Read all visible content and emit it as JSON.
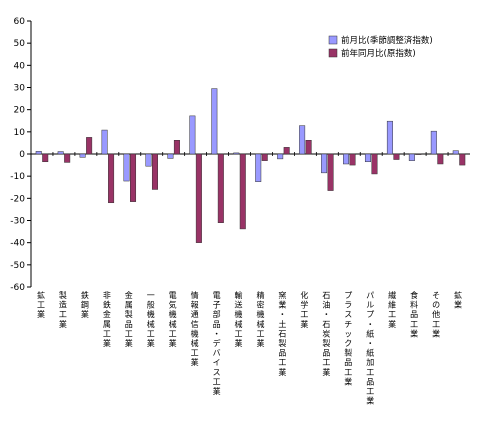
{
  "chart_data": {
    "type": "bar",
    "title": "",
    "xlabel": "",
    "ylabel": "",
    "ylim": [
      -60,
      60
    ],
    "ytick_step": 10,
    "grid": false,
    "legend_position": "top-right",
    "categories": [
      "鉱工業",
      "製造工業",
      "鉄鋼業",
      "非鉄金属工業",
      "金属製品工業",
      "一般機械工業",
      "電気機械工業",
      "情報通信機械工業",
      "電子部品・デバイス工業",
      "輸送機械工業",
      "精密機械工業",
      "窯業・土石製品工業",
      "化学工業",
      "石油・石炭製品工業",
      "プラスチック製品工業",
      "パルプ・紙・紙加工品工業",
      "繊維工業",
      "食料品工業",
      "その他工業",
      "鉱業"
    ],
    "series": [
      {
        "name": "前月比(季節調整済指数)",
        "color": "#9999ff",
        "values": [
          1.2,
          1.1,
          -1.5,
          10.8,
          -12.2,
          -5.5,
          -2.0,
          17.2,
          29.5,
          0.5,
          -12.5,
          -2.2,
          12.8,
          -8.5,
          -4.5,
          -3.5,
          14.8,
          -3.0,
          10.3,
          1.5
        ]
      },
      {
        "name": "前年同月比(原指数)",
        "color": "#993366",
        "values": [
          -3.5,
          -3.8,
          7.5,
          -22.0,
          -21.5,
          -16.0,
          6.2,
          -40.0,
          -31.0,
          -33.8,
          -3.0,
          3.0,
          6.2,
          -16.5,
          -5.0,
          -9.0,
          -2.5,
          0.0,
          -4.5,
          -5.0
        ]
      }
    ]
  }
}
